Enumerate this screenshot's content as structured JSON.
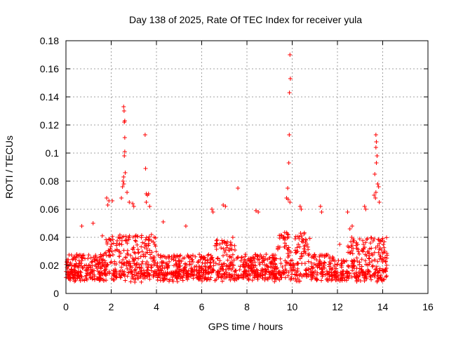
{
  "chart_data": {
    "type": "scatter",
    "title": "Day 138 of 2025, Rate Of TEC Index for receiver yula",
    "xlabel": "GPS time / hours",
    "ylabel": "ROTI / TECUs",
    "xlim": [
      0,
      16
    ],
    "ylim": [
      0,
      0.18
    ],
    "xticks": [
      0,
      2,
      4,
      6,
      8,
      10,
      12,
      14,
      16
    ],
    "xtick_labels": [
      "0",
      "2",
      "4",
      "6",
      "8",
      "10",
      "12",
      "14",
      "16"
    ],
    "yticks": [
      0,
      0.02,
      0.04,
      0.06,
      0.08,
      0.1,
      0.12,
      0.14,
      0.16,
      0.18
    ],
    "ytick_labels": [
      "0",
      "0.02",
      "0.04",
      "0.06",
      "0.08",
      "0.1",
      "0.12",
      "0.14",
      "0.16",
      "0.18"
    ],
    "grid": true,
    "marker": "+",
    "color": "#ff0000",
    "data_x_range": [
      0,
      14.2
    ],
    "series": [
      {
        "name": "ROTI",
        "points": [
          [
            2.55,
            0.133
          ],
          [
            2.57,
            0.13
          ],
          [
            2.6,
            0.123
          ],
          [
            2.58,
            0.122
          ],
          [
            2.6,
            0.111
          ],
          [
            2.6,
            0.101
          ],
          [
            2.58,
            0.098
          ],
          [
            2.62,
            0.086
          ],
          [
            2.55,
            0.083
          ],
          [
            2.52,
            0.08
          ],
          [
            2.56,
            0.078
          ],
          [
            2.5,
            0.076
          ],
          [
            2.45,
            0.068
          ],
          [
            2.7,
            0.072
          ],
          [
            2.8,
            0.065
          ],
          [
            3.5,
            0.113
          ],
          [
            3.52,
            0.089
          ],
          [
            3.55,
            0.071
          ],
          [
            3.65,
            0.071
          ],
          [
            3.6,
            0.07
          ],
          [
            3.55,
            0.065
          ],
          [
            3.7,
            0.062
          ],
          [
            9.9,
            0.17
          ],
          [
            9.92,
            0.153
          ],
          [
            9.88,
            0.143
          ],
          [
            9.87,
            0.113
          ],
          [
            9.85,
            0.093
          ],
          [
            9.8,
            0.075
          ],
          [
            9.75,
            0.068
          ],
          [
            9.82,
            0.067
          ],
          [
            9.9,
            0.065
          ],
          [
            13.7,
            0.113
          ],
          [
            13.72,
            0.108
          ],
          [
            13.7,
            0.104
          ],
          [
            13.75,
            0.098
          ],
          [
            13.72,
            0.093
          ],
          [
            13.65,
            0.085
          ],
          [
            13.78,
            0.078
          ],
          [
            13.82,
            0.076
          ],
          [
            13.7,
            0.072
          ],
          [
            13.62,
            0.07
          ],
          [
            13.68,
            0.068
          ],
          [
            13.85,
            0.065
          ],
          [
            7.6,
            0.075
          ],
          [
            6.95,
            0.063
          ],
          [
            7.05,
            0.062
          ],
          [
            6.5,
            0.058
          ],
          [
            6.45,
            0.06
          ],
          [
            1.8,
            0.068
          ],
          [
            1.9,
            0.066
          ],
          [
            2.05,
            0.066
          ],
          [
            1.85,
            0.063
          ],
          [
            2.95,
            0.064
          ],
          [
            3.0,
            0.062
          ],
          [
            8.4,
            0.059
          ],
          [
            8.5,
            0.058
          ],
          [
            10.35,
            0.062
          ],
          [
            10.4,
            0.06
          ],
          [
            11.25,
            0.062
          ],
          [
            11.3,
            0.058
          ],
          [
            13.2,
            0.062
          ],
          [
            13.25,
            0.06
          ],
          [
            12.45,
            0.058
          ],
          [
            0.7,
            0.048
          ],
          [
            1.2,
            0.05
          ],
          [
            4.3,
            0.051
          ],
          [
            5.3,
            0.048
          ],
          [
            12.1,
            0.035
          ],
          [
            12.55,
            0.046
          ],
          [
            12.65,
            0.048
          ]
        ]
      }
    ],
    "dense_band": {
      "note": "dense cluster of ROTI points between 0 and 14.2 hours",
      "typical_min": 0.005,
      "typical_max": 0.045
    }
  }
}
